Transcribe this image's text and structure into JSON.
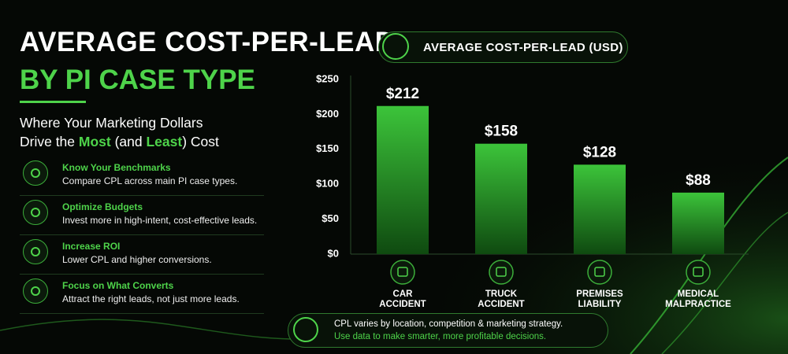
{
  "header": {
    "title_line1": "AVERAGE COST-PER-LEAD",
    "title_line2": "BY PI CASE TYPE",
    "subtitle": [
      "Where Your Marketing Dollars",
      "Drive the ",
      "Most",
      " (and ",
      "Least",
      ") Cost"
    ]
  },
  "features": [
    {
      "title": "Know Your Benchmarks",
      "text": "Compare CPL across main PI case types."
    },
    {
      "title": "Optimize Budgets",
      "text": "Invest more in high-intent, cost-effective leads."
    },
    {
      "title": "Increase ROI",
      "text": "Lower CPL and higher conversions."
    },
    {
      "title": "Focus on What Converts",
      "text": "Attract the right leads, not just more leads."
    }
  ],
  "chart_data": {
    "type": "bar",
    "title": "AVERAGE COST-PER-LEAD (USD)",
    "categories": [
      "CAR ACCIDENT",
      "TRUCK ACCIDENT",
      "PREMISES LIABILITY",
      "MEDICAL MALPRACTICE"
    ],
    "values": [
      212,
      158,
      128,
      88
    ],
    "value_labels": [
      "$212",
      "$158",
      "$128",
      "$88"
    ],
    "color": "#3cc43a",
    "ylim": [
      0,
      250
    ],
    "yticks": [
      {
        "value": 0,
        "label": "$0"
      },
      {
        "value": 50,
        "label": "$50"
      },
      {
        "value": 100,
        "label": "$100"
      },
      {
        "value": 150,
        "label": "$150"
      },
      {
        "value": 200,
        "label": "$200"
      },
      {
        "value": 250,
        "label": "$250"
      }
    ]
  },
  "footer": {
    "line1": "CPL varies by location, competition & marketing strategy.",
    "line2": "Use data to make smarter, more profitable decisions."
  }
}
